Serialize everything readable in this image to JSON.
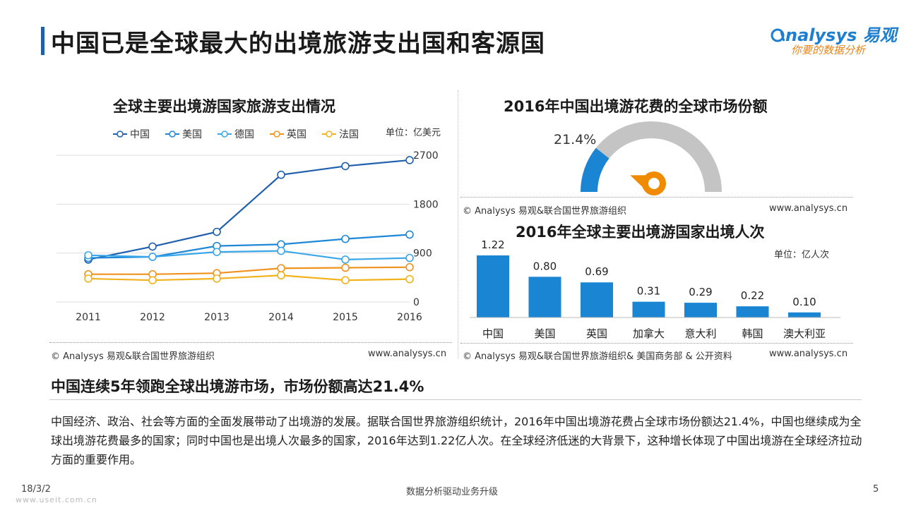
{
  "page": {
    "title": "中国已是全球最大的出境旅游支出国和客源国",
    "logo_brand": "nalysys 易观",
    "logo_slogan": "你要的数据分析",
    "subheading": "中国连续5年领跑全球出境游市场，市场份额高达21.4%",
    "body": "中国经济、政治、社会等方面的全面发展带动了出境游的发展。据联合国世界旅游组织统计，2016年中国出境游花费占全球市场份额达21.4%，中国也继续成为全球出境游花费最多的国家；同时中国也是出境人次最多的国家，2016年达到1.22亿人次。在全球经济低迷的大背景下，这种增长体现了中国出境游在全球经济拉动方面的重要作用。",
    "footer_date": "18/3/2",
    "footer_center": "数据分析驱动业务升级",
    "footer_page": "5",
    "footer_url": "www.useit.com.cn"
  },
  "colors": {
    "china": "#1f5fae",
    "usa": "#1e88d8",
    "germany": "#3aa7e8",
    "uk": "#f0921e",
    "france": "#f2b21c",
    "bar": "#1a86d3",
    "gauge_fill": "#1a86d3",
    "gauge_rest": "#c4c4c4",
    "needle": "#f08a00"
  },
  "chart_data": [
    {
      "type": "line",
      "title": "全球主要出境游国家旅游支出情况",
      "unit": "单位：亿美元",
      "x": [
        "2011",
        "2012",
        "2013",
        "2014",
        "2015",
        "2016"
      ],
      "yticks": [
        "2700",
        "1800",
        "900",
        "0"
      ],
      "ylim": [
        0,
        2700
      ],
      "series": [
        {
          "name": "中国",
          "values": [
            780,
            1020,
            1290,
            2340,
            2500,
            2610
          ]
        },
        {
          "name": "美国",
          "values": [
            810,
            830,
            1030,
            1060,
            1160,
            1240
          ]
        },
        {
          "name": "德国",
          "values": [
            860,
            830,
            920,
            940,
            780,
            810
          ]
        },
        {
          "name": "英国",
          "values": [
            510,
            510,
            530,
            620,
            630,
            640
          ]
        },
        {
          "name": "法国",
          "values": [
            430,
            400,
            430,
            490,
            400,
            420
          ]
        }
      ],
      "source": "© Analysys 易观&联合国世界旅游组织",
      "website": "www.analysys.cn"
    },
    {
      "type": "gauge",
      "title": "2016年中国出境游花费的全球市场份额",
      "value": 21.4,
      "value_label": "21.4%",
      "source": "© Analysys 易观&联合国世界旅游组织",
      "website": "www.analysys.cn"
    },
    {
      "type": "bar",
      "title": "2016年全球主要出境游国家出境人次",
      "unit": "单位：亿人次",
      "categories": [
        "中国",
        "美国",
        "英国",
        "加拿大",
        "意大利",
        "韩国",
        "澳大利亚"
      ],
      "values": [
        1.22,
        0.8,
        0.69,
        0.31,
        0.29,
        0.22,
        0.1
      ],
      "labels": [
        "1.22",
        "0.80",
        "0.69",
        "0.31",
        "0.29",
        "0.22",
        "0.10"
      ],
      "source": "© Analysys 易观&联合国世界旅游组织& 美国商务部 & 公开资料",
      "website": "www.analysys.cn"
    }
  ]
}
